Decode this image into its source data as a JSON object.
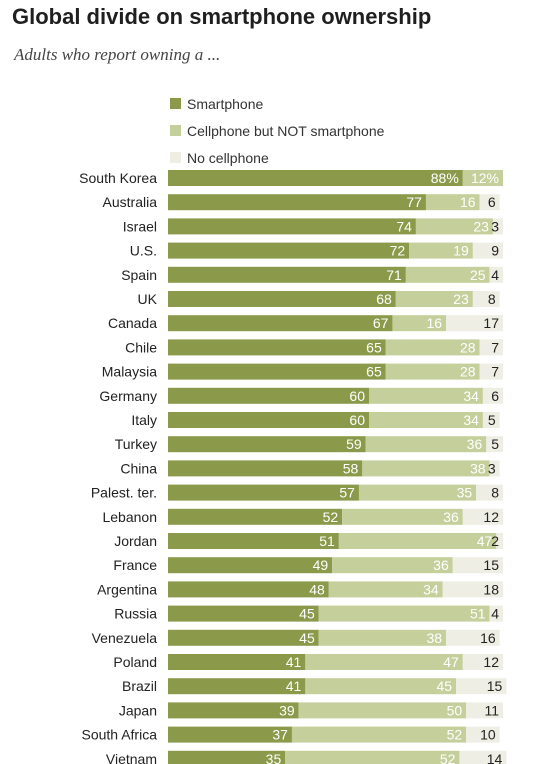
{
  "header": {
    "title": "Global divide on smartphone ownership",
    "subtitle": "Adults who report owning a ..."
  },
  "legend": {
    "items": [
      {
        "label": "Smartphone",
        "color": "#8a9a4a"
      },
      {
        "label": "Cellphone but NOT smartphone",
        "color": "#c5cf9b"
      },
      {
        "label": "No cellphone",
        "color": "#eeeee4"
      }
    ]
  },
  "chart_data": {
    "type": "bar",
    "orientation": "horizontal",
    "stacked": true,
    "title": "Global divide on smartphone ownership",
    "subtitle": "Adults who report owning a ...",
    "categories": [
      "South Korea",
      "Australia",
      "Israel",
      "U.S.",
      "Spain",
      "UK",
      "Canada",
      "Chile",
      "Malaysia",
      "Germany",
      "Italy",
      "Turkey",
      "China",
      "Palest. ter.",
      "Lebanon",
      "Jordan",
      "France",
      "Argentina",
      "Russia",
      "Venezuela",
      "Poland",
      "Brazil",
      "Japan",
      "South Africa",
      "Vietnam"
    ],
    "series": [
      {
        "name": "Smartphone",
        "color": "#8a9a4a",
        "values": [
          88,
          77,
          74,
          72,
          71,
          68,
          67,
          65,
          65,
          60,
          60,
          59,
          58,
          57,
          52,
          51,
          49,
          48,
          45,
          45,
          41,
          41,
          39,
          37,
          35
        ]
      },
      {
        "name": "Cellphone but NOT smartphone",
        "color": "#c5cf9b",
        "values": [
          12,
          16,
          23,
          19,
          25,
          23,
          16,
          28,
          28,
          34,
          34,
          36,
          38,
          35,
          36,
          47,
          36,
          34,
          51,
          38,
          47,
          45,
          50,
          52,
          52
        ]
      },
      {
        "name": "No cellphone",
        "color": "#eeeee4",
        "values": [
          null,
          6,
          3,
          9,
          4,
          8,
          17,
          7,
          7,
          6,
          5,
          5,
          3,
          8,
          12,
          2,
          15,
          18,
          4,
          16,
          12,
          15,
          11,
          10,
          14
        ]
      }
    ],
    "value_labels": [
      [
        "88%",
        "12%",
        ""
      ],
      [
        "77",
        "16",
        "6"
      ],
      [
        "74",
        "23",
        "3"
      ],
      [
        "72",
        "19",
        "9"
      ],
      [
        "71",
        "25",
        "4"
      ],
      [
        "68",
        "23",
        "8"
      ],
      [
        "67",
        "16",
        "17"
      ],
      [
        "65",
        "28",
        "7"
      ],
      [
        "65",
        "28",
        "7"
      ],
      [
        "60",
        "34",
        "6"
      ],
      [
        "60",
        "34",
        "5"
      ],
      [
        "59",
        "36",
        "5"
      ],
      [
        "58",
        "38",
        "3"
      ],
      [
        "57",
        "35",
        "8"
      ],
      [
        "52",
        "36",
        "12"
      ],
      [
        "51",
        "47",
        "2"
      ],
      [
        "49",
        "36",
        "15"
      ],
      [
        "48",
        "34",
        "18"
      ],
      [
        "45",
        "51",
        "4"
      ],
      [
        "45",
        "38",
        "16"
      ],
      [
        "41",
        "47",
        "12"
      ],
      [
        "41",
        "45",
        "15"
      ],
      [
        "39",
        "50",
        "11"
      ],
      [
        "37",
        "52",
        "10"
      ],
      [
        "35",
        "52",
        "14"
      ]
    ],
    "xlim": [
      0,
      100
    ],
    "grid": false,
    "legend_position": "top"
  }
}
